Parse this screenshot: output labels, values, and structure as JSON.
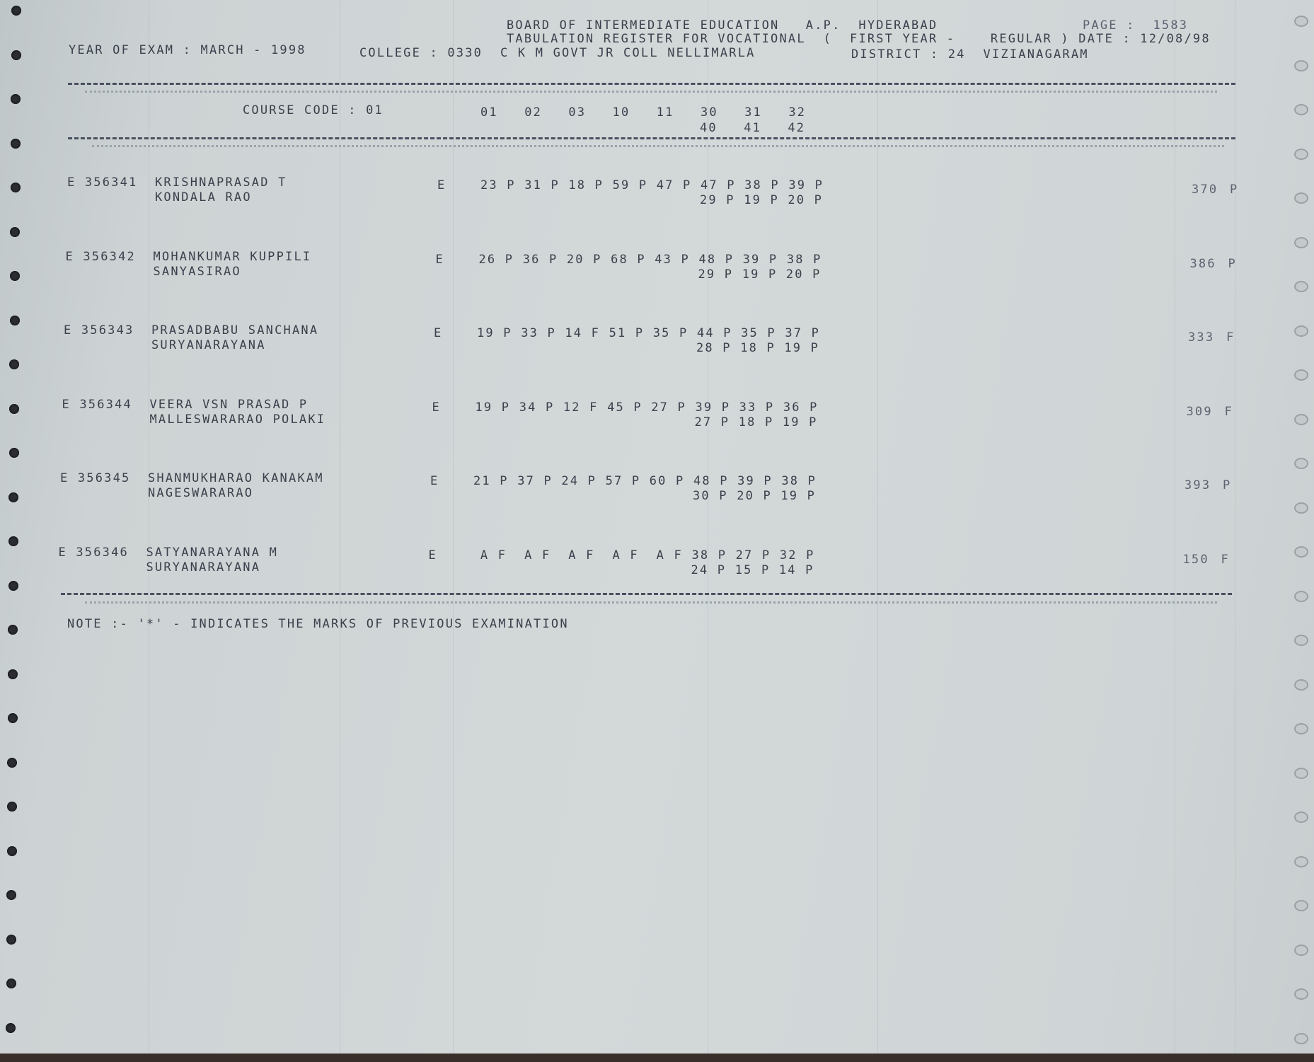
{
  "header": {
    "line1": "BOARD OF INTERMEDIATE EDUCATION   A.P.  HYDERABAD",
    "line2": "TABULATION REGISTER FOR VOCATIONAL  (  FIRST YEAR -    REGULAR ) DATE : 12/08/98",
    "page": "PAGE :  1583",
    "year_of_exam": "YEAR OF EXAM : MARCH - 1998",
    "college": "COLLEGE : 0330  C K M GOVT JR COLL NELLIMARLA",
    "district": "DISTRICT : 24  VIZIANAGARAM"
  },
  "columns": {
    "course_code": "COURSE CODE : 01",
    "codes_line1": [
      "01",
      "02",
      "03",
      "10",
      "11",
      "30",
      "31",
      "32"
    ],
    "codes_line2": [
      "40",
      "41",
      "42"
    ]
  },
  "students": [
    {
      "roll": "E 356341",
      "name1": "KRISHNAPRASAD T",
      "name2": "KONDALA RAO",
      "medium": "E",
      "marks1": [
        [
          "23",
          "P"
        ],
        [
          "31",
          "P"
        ],
        [
          "18",
          "P"
        ],
        [
          "59",
          "P"
        ],
        [
          "47",
          "P"
        ],
        [
          "47",
          "P"
        ],
        [
          "38",
          "P"
        ],
        [
          "39",
          "P"
        ]
      ],
      "marks2": [
        [
          "29",
          "P"
        ],
        [
          "19",
          "P"
        ],
        [
          "20",
          "P"
        ]
      ],
      "total": "370",
      "result": "P"
    },
    {
      "roll": "E 356342",
      "name1": "MOHANKUMAR KUPPILI",
      "name2": "SANYASIRAO",
      "medium": "E",
      "marks1": [
        [
          "26",
          "P"
        ],
        [
          "36",
          "P"
        ],
        [
          "20",
          "P"
        ],
        [
          "68",
          "P"
        ],
        [
          "43",
          "P"
        ],
        [
          "48",
          "P"
        ],
        [
          "39",
          "P"
        ],
        [
          "38",
          "P"
        ]
      ],
      "marks2": [
        [
          "29",
          "P"
        ],
        [
          "19",
          "P"
        ],
        [
          "20",
          "P"
        ]
      ],
      "total": "386",
      "result": "P"
    },
    {
      "roll": "E 356343",
      "name1": "PRASADBABU SANCHANA",
      "name2": "SURYANARAYANA",
      "medium": "E",
      "marks1": [
        [
          "19",
          "P"
        ],
        [
          "33",
          "P"
        ],
        [
          "14",
          "F"
        ],
        [
          "51",
          "P"
        ],
        [
          "35",
          "P"
        ],
        [
          "44",
          "P"
        ],
        [
          "35",
          "P"
        ],
        [
          "37",
          "P"
        ]
      ],
      "marks2": [
        [
          "28",
          "P"
        ],
        [
          "18",
          "P"
        ],
        [
          "19",
          "P"
        ]
      ],
      "total": "333",
      "result": "F"
    },
    {
      "roll": "E 356344",
      "name1": "VEERA VSN PRASAD P",
      "name2": "MALLESWARARAO POLAKI",
      "medium": "E",
      "marks1": [
        [
          "19",
          "P"
        ],
        [
          "34",
          "P"
        ],
        [
          "12",
          "F"
        ],
        [
          "45",
          "P"
        ],
        [
          "27",
          "P"
        ],
        [
          "39",
          "P"
        ],
        [
          "33",
          "P"
        ],
        [
          "36",
          "P"
        ]
      ],
      "marks2": [
        [
          "27",
          "P"
        ],
        [
          "18",
          "P"
        ],
        [
          "19",
          "P"
        ]
      ],
      "total": "309",
      "result": "F"
    },
    {
      "roll": "E 356345",
      "name1": "SHANMUKHARAO KANAKAM",
      "name2": "NAGESWARARAO",
      "medium": "E",
      "marks1": [
        [
          "21",
          "P"
        ],
        [
          "37",
          "P"
        ],
        [
          "24",
          "P"
        ],
        [
          "57",
          "P"
        ],
        [
          "60",
          "P"
        ],
        [
          "48",
          "P"
        ],
        [
          "39",
          "P"
        ],
        [
          "38",
          "P"
        ]
      ],
      "marks2": [
        [
          "30",
          "P"
        ],
        [
          "20",
          "P"
        ],
        [
          "19",
          "P"
        ]
      ],
      "total": "393",
      "result": "P"
    },
    {
      "roll": "E 356346",
      "name1": "SATYANARAYANA M",
      "name2": "SURYANARAYANA",
      "medium": "E",
      "marks1": [
        [
          " A",
          "F"
        ],
        [
          " A",
          "F"
        ],
        [
          " A",
          "F"
        ],
        [
          " A",
          "F"
        ],
        [
          " A",
          "F"
        ],
        [
          "38",
          "P"
        ],
        [
          "27",
          "P"
        ],
        [
          "32",
          "P"
        ]
      ],
      "marks2": [
        [
          "24",
          "P"
        ],
        [
          "15",
          "P"
        ],
        [
          "14",
          "P"
        ]
      ],
      "total": "150",
      "result": "F"
    }
  ],
  "note": "NOTE :- '*' - INDICATES THE MARKS OF PREVIOUS EXAMINATION",
  "colors": {
    "ink": "#3b404c",
    "paper": "#d3d8d9",
    "holes": "#2b2d33"
  }
}
